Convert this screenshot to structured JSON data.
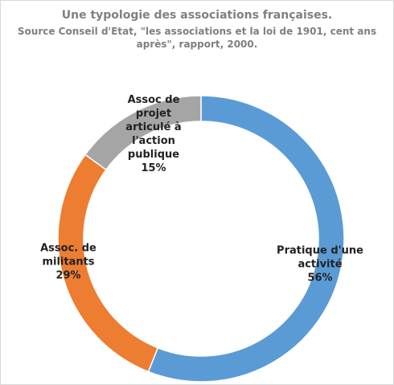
{
  "chart_data": {
    "type": "donut",
    "title": "Une typologie des associations françaises.",
    "subtitle": "Source Conseil d'Etat, \"les associations et la loi de 1901, cent ans après\", rapport, 2000.",
    "categories": [
      "Pratique d'une activité",
      "Assoc. de militants",
      "Assoc de projet articulé à l'action publique"
    ],
    "values": [
      56,
      29,
      15
    ],
    "value_labels": [
      "56%",
      "29%",
      "15%"
    ],
    "colors": [
      "#5b9bd5",
      "#ed7d31",
      "#a5a5a5"
    ]
  }
}
